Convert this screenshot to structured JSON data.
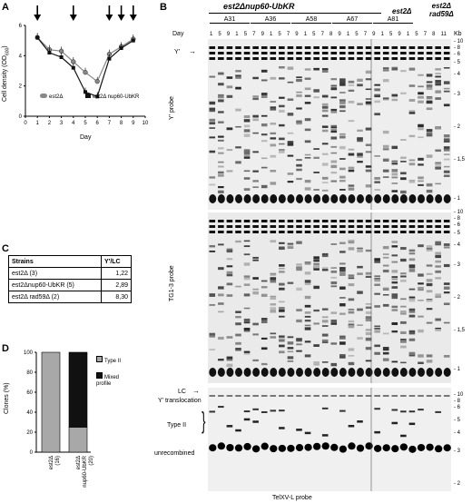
{
  "panels": {
    "a": {
      "letter": "A"
    },
    "b": {
      "letter": "B"
    },
    "c": {
      "letter": "C"
    },
    "d": {
      "letter": "D"
    }
  },
  "panel_a": {
    "ylabel": "Cell density (OD",
    "ylabel_sub": "600",
    "ylabel_end": ")",
    "xlabel": "Day",
    "yticks": [
      "0",
      "2",
      "4",
      "6"
    ],
    "xticks": [
      "0",
      "1",
      "2",
      "3",
      "4",
      "5",
      "6",
      "7",
      "8",
      "9",
      "10"
    ],
    "legend": [
      "est2Δ",
      "est2Δ nup60-UbKR"
    ],
    "arrow_days": [
      1,
      4,
      7,
      8,
      9
    ]
  },
  "chart_data": {
    "type": "line",
    "xlabel": "Day",
    "ylabel": "Cell density (OD600)",
    "xlim": [
      0,
      10
    ],
    "ylim": [
      0,
      6
    ],
    "x": [
      1,
      2,
      3,
      4,
      5,
      6,
      7,
      8,
      9
    ],
    "series": [
      {
        "name": "est2Δ",
        "values": [
          5.2,
          4.4,
          4.3,
          3.6,
          2.9,
          2.3,
          4.1,
          4.6,
          5.1
        ]
      },
      {
        "name": "est2Δ nup60-UbKR",
        "values": [
          5.2,
          4.2,
          3.9,
          3.2,
          1.6,
          1.3,
          3.8,
          4.5,
          5.0
        ]
      }
    ]
  },
  "panel_b": {
    "title": "est2Δnup60-UbKR",
    "groups": [
      "A31",
      "A36",
      "A58",
      "A67",
      "A81"
    ],
    "est2_header": "est2Δ",
    "rad59_header_1": "est2Δ",
    "rad59_header_2": "rad59Δ",
    "day_label": "Day",
    "lane_days": [
      "1",
      "5",
      "9",
      "1",
      "5",
      "7",
      "9",
      "1",
      "5",
      "7",
      "9",
      "1",
      "5",
      "7",
      "8",
      "9",
      "1",
      "5",
      "7",
      "9",
      "1",
      "5",
      "9",
      "1",
      "5",
      "7",
      "8",
      "11"
    ],
    "kb_label": "Kb",
    "kb_ticks_top": [
      "10",
      "8",
      "6",
      "5",
      "4",
      "3",
      "2",
      "1,5",
      "1"
    ],
    "kb_ticks_mid": [
      "10",
      "8",
      "6",
      "5",
      "4",
      "3",
      "2",
      "1,5",
      "1"
    ],
    "kb_ticks_bot": [
      "10",
      "8",
      "6",
      "5",
      "4",
      "3",
      "2"
    ],
    "y_prime_label": "Y'",
    "y_probe_label": "Y' probe",
    "tg_probe_label": "TG1-3 probe",
    "lc_label": "LC",
    "ytrans_label": "Y' translocation",
    "type2_label": "Type II",
    "unrec_label": "unrecombined",
    "telxv_label": "TelXV-L  probe"
  },
  "panel_c": {
    "headers": [
      "Strains",
      "Y'/LC"
    ],
    "rows": [
      {
        "strain": "est2Δ (3)",
        "value": "1,22"
      },
      {
        "strain": "est2Δnup60-UbKR (5)",
        "value": "2,89"
      },
      {
        "strain": "est2Δ rad59Δ (2)",
        "value": "8,30"
      }
    ]
  },
  "panel_d": {
    "ylabel": "Clones (%)",
    "yticks": [
      "0",
      "20",
      "40",
      "60",
      "80",
      "100"
    ],
    "legend": [
      "Type II",
      "Mixed profile"
    ],
    "xlabels": [
      [
        "est2Δ",
        "(16)"
      ],
      [
        "est2Δ",
        "nup60-UbKR",
        "(20)"
      ]
    ],
    "colors": {
      "type2": "#a8a8a8",
      "mixed": "#111111"
    }
  },
  "chart_data_d": {
    "type": "bar",
    "categories": [
      "est2Δ (16)",
      "est2Δ nup60-UbKR (20)"
    ],
    "series": [
      {
        "name": "Type II",
        "values": [
          100,
          25
        ]
      },
      {
        "name": "Mixed profile",
        "values": [
          0,
          75
        ]
      }
    ],
    "ylim": [
      0,
      100
    ],
    "ylabel": "Clones (%)"
  }
}
